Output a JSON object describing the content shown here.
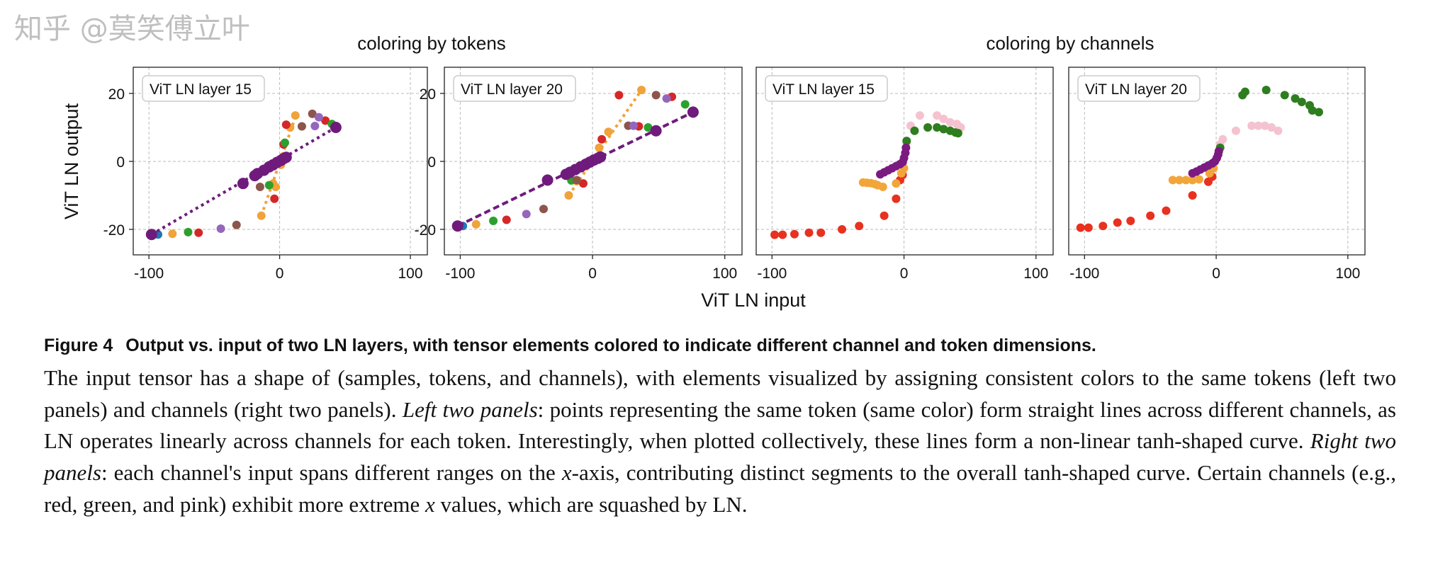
{
  "figure": {
    "group_titles": [
      "coloring by tokens",
      "coloring by channels"
    ],
    "ylabel": "ViT LN output",
    "xlabel": "ViT LN input",
    "caption_label": "Figure 4",
    "caption_title": "Output vs. input of two LN layers, with tensor elements colored to indicate different channel and token dimensions.",
    "caption_parts": [
      "The input tensor has a shape of (samples, tokens, and channels), with elements visualized by assigning consistent colors to the same tokens (left two panels) and channels (right two panels). ",
      "Left two panels",
      ": points representing the same token (same color) form straight lines across different channels, as LN operates linearly across channels for each token. Interestingly, when plotted collectively, these lines form a non-linear tanh-shaped curve. ",
      "Right two panels",
      ": each channel's input spans different ranges on the ",
      "x",
      "-axis, contributing distinct segments to the overall tanh-shaped curve. Certain channels (e.g., red, green, and pink) exhibit more extreme ",
      "x",
      " values, which are squashed by LN."
    ],
    "watermark": "知乎 @莫笑傅立叶"
  },
  "chart_data": [
    {
      "type": "scatter",
      "group": "coloring by tokens",
      "legend": "ViT LN layer 15",
      "xlim": [
        -112,
        113
      ],
      "ylim": [
        -27.5,
        27.7
      ],
      "xticks": [
        "-100",
        "0",
        "100"
      ],
      "yticks": [
        "20",
        "0",
        "-20"
      ],
      "grid": true,
      "series": [
        {
          "color": "#f0a33a",
          "line": "dotted",
          "fit": [
            [
              -14,
              -16
            ],
            [
              12,
              13
            ]
          ],
          "points": [
            [
              -82,
              -21.3
            ],
            [
              -14,
              -16
            ],
            [
              -5,
              -6.5
            ],
            [
              -3,
              -7.5
            ],
            [
              1,
              -1
            ],
            [
              3,
              1.5
            ],
            [
              8,
              10
            ],
            [
              12,
              13.5
            ]
          ]
        },
        {
          "color": "#d62728",
          "points": [
            [
              -62,
              -21
            ],
            [
              -4,
              -11
            ],
            [
              3,
              5
            ],
            [
              5,
              10.8
            ],
            [
              35,
              12
            ]
          ]
        },
        {
          "color": "#2ca02c",
          "points": [
            [
              -70,
              -20.8
            ],
            [
              -8,
              -7
            ],
            [
              4,
              5.5
            ],
            [
              40,
              11
            ]
          ]
        },
        {
          "color": "#8c564b",
          "points": [
            [
              -33,
              -18.7
            ],
            [
              -15,
              -7.5
            ],
            [
              17,
              10.3
            ],
            [
              25,
              14
            ]
          ]
        },
        {
          "color": "#9467bd",
          "points": [
            [
              -45,
              -19.8
            ],
            [
              27,
              10.4
            ],
            [
              30,
              13
            ]
          ]
        },
        {
          "color": "#1f77b4",
          "points": [
            [
              -93,
              -21.5
            ]
          ]
        },
        {
          "color": "#6f1b7c",
          "line": "dotted",
          "big": true,
          "fit": [
            [
              -98,
              -21.5
            ],
            [
              43,
              10
            ]
          ],
          "points": [
            [
              -98,
              -21.5
            ],
            [
              -28,
              -6.5
            ],
            [
              -19,
              -4.2
            ],
            [
              -17,
              -3.6
            ],
            [
              -12,
              -2.6
            ],
            [
              -8,
              -1.6
            ],
            [
              -5,
              -1
            ],
            [
              -2,
              -0.3
            ],
            [
              1,
              0.3
            ],
            [
              3,
              0.8
            ],
            [
              5,
              1.2
            ],
            [
              43,
              10
            ]
          ]
        }
      ]
    },
    {
      "type": "scatter",
      "group": "coloring by tokens",
      "legend": "ViT LN layer 20",
      "xlim": [
        -112,
        113
      ],
      "ylim": [
        -27.5,
        27.7
      ],
      "xticks": [
        "-100",
        "0",
        "100"
      ],
      "yticks": [
        "20",
        "0",
        "-20"
      ],
      "grid": true,
      "series": [
        {
          "color": "#f0a33a",
          "line": "dotted",
          "fit": [
            [
              -18,
              -10
            ],
            [
              37,
              21
            ]
          ],
          "points": [
            [
              -88,
              -18.5
            ],
            [
              -18,
              -10
            ],
            [
              -12,
              -5.8
            ],
            [
              -5,
              -1.5
            ],
            [
              5,
              4
            ],
            [
              12,
              8.7
            ],
            [
              37,
              21
            ]
          ]
        },
        {
          "color": "#d62728",
          "points": [
            [
              -65,
              -17.2
            ],
            [
              -7,
              -6.5
            ],
            [
              7,
              6.5
            ],
            [
              20,
              19.5
            ],
            [
              35,
              10.3
            ],
            [
              60,
              19
            ]
          ]
        },
        {
          "color": "#2ca02c",
          "points": [
            [
              -75,
              -17.5
            ],
            [
              -16,
              -5.6
            ],
            [
              42,
              10
            ],
            [
              70,
              16.8
            ]
          ]
        },
        {
          "color": "#8c564b",
          "points": [
            [
              -37,
              -14
            ],
            [
              -12,
              -5.5
            ],
            [
              27,
              10.5
            ],
            [
              48,
              19.5
            ]
          ]
        },
        {
          "color": "#9467bd",
          "points": [
            [
              -50,
              -15.5
            ],
            [
              31,
              10.5
            ],
            [
              56,
              18.5
            ]
          ]
        },
        {
          "color": "#1f77b4",
          "points": [
            [
              -98,
              -19
            ]
          ]
        },
        {
          "color": "#6f1b7c",
          "line": "dashed",
          "big": true,
          "fit": [
            [
              -102,
              -19
            ],
            [
              76,
              14.5
            ]
          ],
          "points": [
            [
              -102,
              -19
            ],
            [
              -34,
              -5.5
            ],
            [
              -20,
              -3.8
            ],
            [
              -17,
              -3.2
            ],
            [
              -13,
              -2.4
            ],
            [
              -9,
              -1.6
            ],
            [
              -5,
              -0.8
            ],
            [
              -2,
              -0.2
            ],
            [
              1,
              0.4
            ],
            [
              4,
              0.9
            ],
            [
              6,
              1.3
            ],
            [
              48,
              9
            ],
            [
              76,
              14.5
            ]
          ]
        }
      ]
    },
    {
      "type": "scatter",
      "group": "coloring by channels",
      "legend": "ViT LN layer 15",
      "xlim": [
        -112,
        113
      ],
      "ylim": [
        -27.5,
        27.7
      ],
      "xticks": [
        "-100",
        "0",
        "100"
      ],
      "yticks": [],
      "grid": true,
      "series": [
        {
          "color": "#e8311f",
          "points": [
            [
              -98,
              -21.6
            ],
            [
              -92,
              -21.6
            ],
            [
              -83,
              -21.4
            ],
            [
              -72,
              -21
            ],
            [
              -63,
              -21
            ],
            [
              -47,
              -20
            ],
            [
              -34,
              -19
            ],
            [
              -15,
              -16
            ],
            [
              -6,
              -11
            ],
            [
              -3,
              -5.5
            ],
            [
              -1,
              -4
            ]
          ]
        },
        {
          "color": "#f2a63a",
          "points": [
            [
              -31,
              -6.2
            ],
            [
              -28,
              -6.3
            ],
            [
              -25,
              -6.4
            ],
            [
              -22,
              -6.7
            ],
            [
              -20,
              -7
            ],
            [
              -16,
              -7.5
            ],
            [
              -6,
              -6.5
            ],
            [
              -2,
              -3.5
            ],
            [
              0,
              -2
            ]
          ]
        },
        {
          "color": "#f4c3cf",
          "points": [
            [
              2,
              5.5
            ],
            [
              5,
              10.5
            ],
            [
              12,
              13.5
            ],
            [
              25,
              13.5
            ],
            [
              30,
              12.5
            ],
            [
              35,
              11.5
            ],
            [
              40,
              11
            ],
            [
              43,
              10
            ]
          ]
        },
        {
          "color": "#2e7d1e",
          "points": [
            [
              2,
              6
            ],
            [
              8,
              9
            ],
            [
              18,
              10
            ],
            [
              25,
              10
            ],
            [
              30,
              9.5
            ],
            [
              35,
              9
            ],
            [
              39,
              8.5
            ],
            [
              41,
              8.3
            ]
          ]
        },
        {
          "color": "#7b1a80",
          "points": [
            [
              -18,
              -3.8
            ],
            [
              -15,
              -3.2
            ],
            [
              -12,
              -2.6
            ],
            [
              -9,
              -2
            ],
            [
              -6,
              -1.4
            ],
            [
              -3,
              -0.8
            ],
            [
              -1,
              -0.2
            ],
            [
              0,
              1
            ],
            [
              1,
              2.5
            ],
            [
              1.5,
              4
            ]
          ]
        }
      ]
    },
    {
      "type": "scatter",
      "group": "coloring by channels",
      "legend": "ViT LN layer 20",
      "xlim": [
        -112,
        113
      ],
      "ylim": [
        -27.5,
        27.7
      ],
      "xticks": [
        "-100",
        "0",
        "100"
      ],
      "yticks": [],
      "grid": true,
      "series": [
        {
          "color": "#e8311f",
          "points": [
            [
              -103,
              -19.5
            ],
            [
              -97,
              -19.5
            ],
            [
              -86,
              -19
            ],
            [
              -75,
              -18
            ],
            [
              -65,
              -17.5
            ],
            [
              -50,
              -16
            ],
            [
              -38,
              -14.5
            ],
            [
              -18,
              -10
            ],
            [
              -6,
              -6
            ],
            [
              -3,
              -4.5
            ]
          ]
        },
        {
          "color": "#f2a63a",
          "points": [
            [
              -33,
              -5.5
            ],
            [
              -28,
              -5.5
            ],
            [
              -23,
              -5.5
            ],
            [
              -18,
              -5.5
            ],
            [
              -13,
              -5.3
            ],
            [
              -5,
              -3.5
            ],
            [
              -2,
              -2
            ]
          ]
        },
        {
          "color": "#f4c3cf",
          "points": [
            [
              3,
              5
            ],
            [
              5,
              6.5
            ],
            [
              15,
              9
            ],
            [
              27,
              10.5
            ],
            [
              32,
              10.5
            ],
            [
              37,
              10.5
            ],
            [
              42,
              10
            ],
            [
              47,
              9
            ]
          ]
        },
        {
          "color": "#2e7d1e",
          "points": [
            [
              3,
              4
            ],
            [
              20,
              19.5
            ],
            [
              22,
              20.5
            ],
            [
              38,
              21
            ],
            [
              52,
              19.5
            ],
            [
              60,
              18.5
            ],
            [
              65,
              17.5
            ],
            [
              71,
              16.5
            ],
            [
              73,
              15
            ],
            [
              78,
              14.5
            ]
          ]
        },
        {
          "color": "#7b1a80",
          "points": [
            [
              -18,
              -3.5
            ],
            [
              -15,
              -3
            ],
            [
              -12,
              -2.4
            ],
            [
              -9,
              -1.8
            ],
            [
              -6,
              -1.2
            ],
            [
              -3,
              -0.6
            ],
            [
              -1,
              0
            ],
            [
              0.5,
              1
            ],
            [
              1.5,
              2
            ],
            [
              2,
              3
            ]
          ]
        }
      ]
    }
  ]
}
